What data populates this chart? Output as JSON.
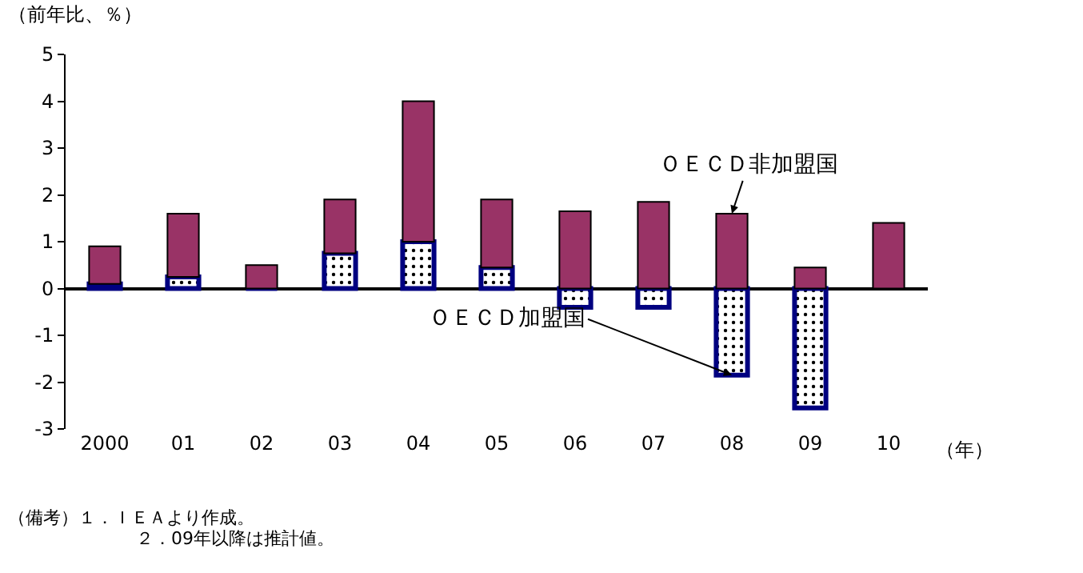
{
  "chart_data": {
    "type": "bar",
    "stacked": true,
    "ylabel": "（前年比、％）",
    "xlabel": "（年）",
    "categories": [
      "2000",
      "01",
      "02",
      "03",
      "04",
      "05",
      "06",
      "07",
      "08",
      "09",
      "10"
    ],
    "series": [
      {
        "color": "#000080",
        "values": [
          0.1,
          0.25,
          0,
          0.75,
          1.0,
          0.45,
          -0.4,
          -0.4,
          -1.85,
          -2.55,
          null
        ]
      },
      {
        "color": "#993366",
        "values": [
          0.8,
          1.35,
          0.5,
          1.15,
          3.0,
          1.45,
          1.65,
          1.85,
          1.6,
          0.45,
          1.4
        ]
      }
    ],
    "ylim": [
      -3,
      5
    ],
    "yticks": [
      -3,
      -2,
      -1,
      0,
      1,
      2,
      3,
      4,
      5
    ],
    "legend": false,
    "annotations": [
      {
        "text": "ＯＥＣＤ非加盟国",
        "x": "08",
        "y": 1.6
      },
      {
        "text": "ＯＥＣＤ加盟国",
        "x": "08",
        "y": -1.85
      },
      "（備考）１．ＩＥＡより作成。",
      "２．09年以降は推計値。"
    ]
  }
}
